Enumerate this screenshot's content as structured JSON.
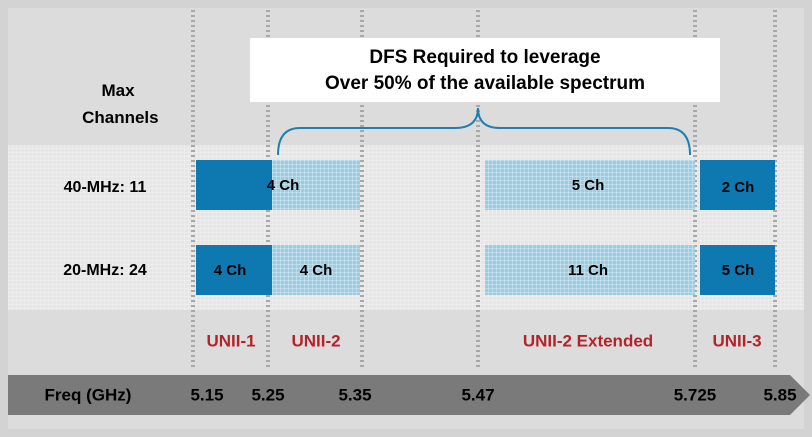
{
  "callout": {
    "lines": [
      "DFS Required to leverage",
      "Over 50% of the available spectrum"
    ]
  },
  "header": "Max Channels",
  "rows": [
    {
      "label": "40-MHz: 11",
      "segments": [
        "4 Ch",
        "5 Ch",
        "2 Ch"
      ]
    },
    {
      "label": "20-MHz: 24",
      "segments": [
        "4 Ch",
        "4 Ch",
        "11 Ch",
        "5 Ch"
      ]
    }
  ],
  "bands": [
    "UNII-1",
    "UNII-2",
    "UNII-2 Extended",
    "UNII-3"
  ],
  "axis": {
    "label": "Freq (GHz)",
    "frequencies": [
      "5.15",
      "5.25",
      "5.35",
      "5.47",
      "5.725",
      "5.85"
    ]
  }
}
